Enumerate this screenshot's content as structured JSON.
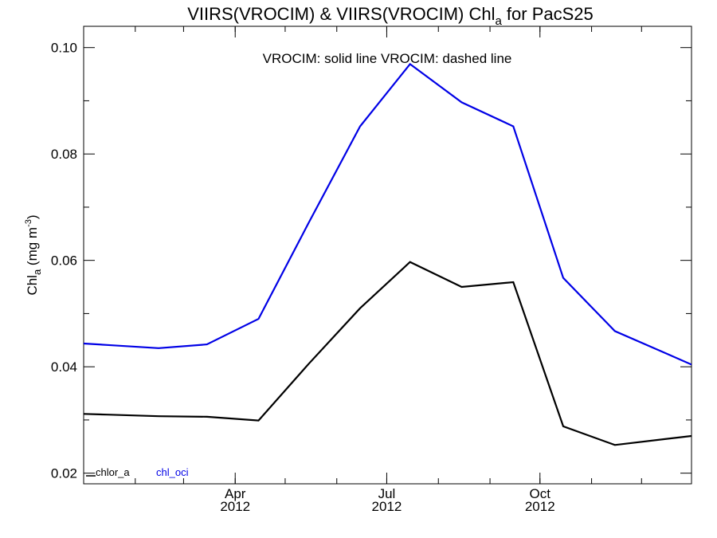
{
  "chart_data": {
    "type": "line",
    "title": {
      "prefix": "VIIRS(VROCIM) & VIIRS(VROCIM)  Chl",
      "subscript": "a",
      "suffix": " for PacS25"
    },
    "ylabel": {
      "prefix": "Chl",
      "subscript": "a",
      "middle": " (mg m",
      "superscript": "-3",
      "suffix": ")"
    },
    "annotation": "VROCIM: solid line   VROCIM: dashed line",
    "x": [
      "2012-01-15",
      "2012-02-15",
      "2012-03-15",
      "2012-04-15",
      "2012-05-15",
      "2012-06-15",
      "2012-07-15",
      "2012-08-15",
      "2012-09-15",
      "2012-10-15",
      "2012-11-15",
      "2012-12-15"
    ],
    "xlim": [
      "2012-01-01",
      "2012-12-31"
    ],
    "x_ticks": [
      {
        "date": "2012-04-01",
        "label": "Apr",
        "year": "2012"
      },
      {
        "date": "2012-07-01",
        "label": "Jul",
        "year": "2012"
      },
      {
        "date": "2012-10-01",
        "label": "Oct",
        "year": "2012"
      }
    ],
    "ylim": [
      0.018,
      0.104
    ],
    "y_ticks": [
      "0.02",
      "0.04",
      "0.06",
      "0.08",
      "0.10"
    ],
    "series": [
      {
        "name": "chlor_a",
        "color": "#000000",
        "values": [
          0.031,
          0.0307,
          0.0306,
          0.0299,
          0.0405,
          0.051,
          0.0597,
          0.055,
          0.0559,
          0.0288,
          0.0253,
          0.0264
        ]
      },
      {
        "name": "chl_oci",
        "color": "#0000e6",
        "values": [
          0.0441,
          0.0435,
          0.0442,
          0.049,
          0.067,
          0.0852,
          0.0969,
          0.0897,
          0.0852,
          0.0567,
          0.0467,
          0.0426
        ]
      }
    ],
    "grid": false,
    "legend_position": "bottom-left"
  }
}
